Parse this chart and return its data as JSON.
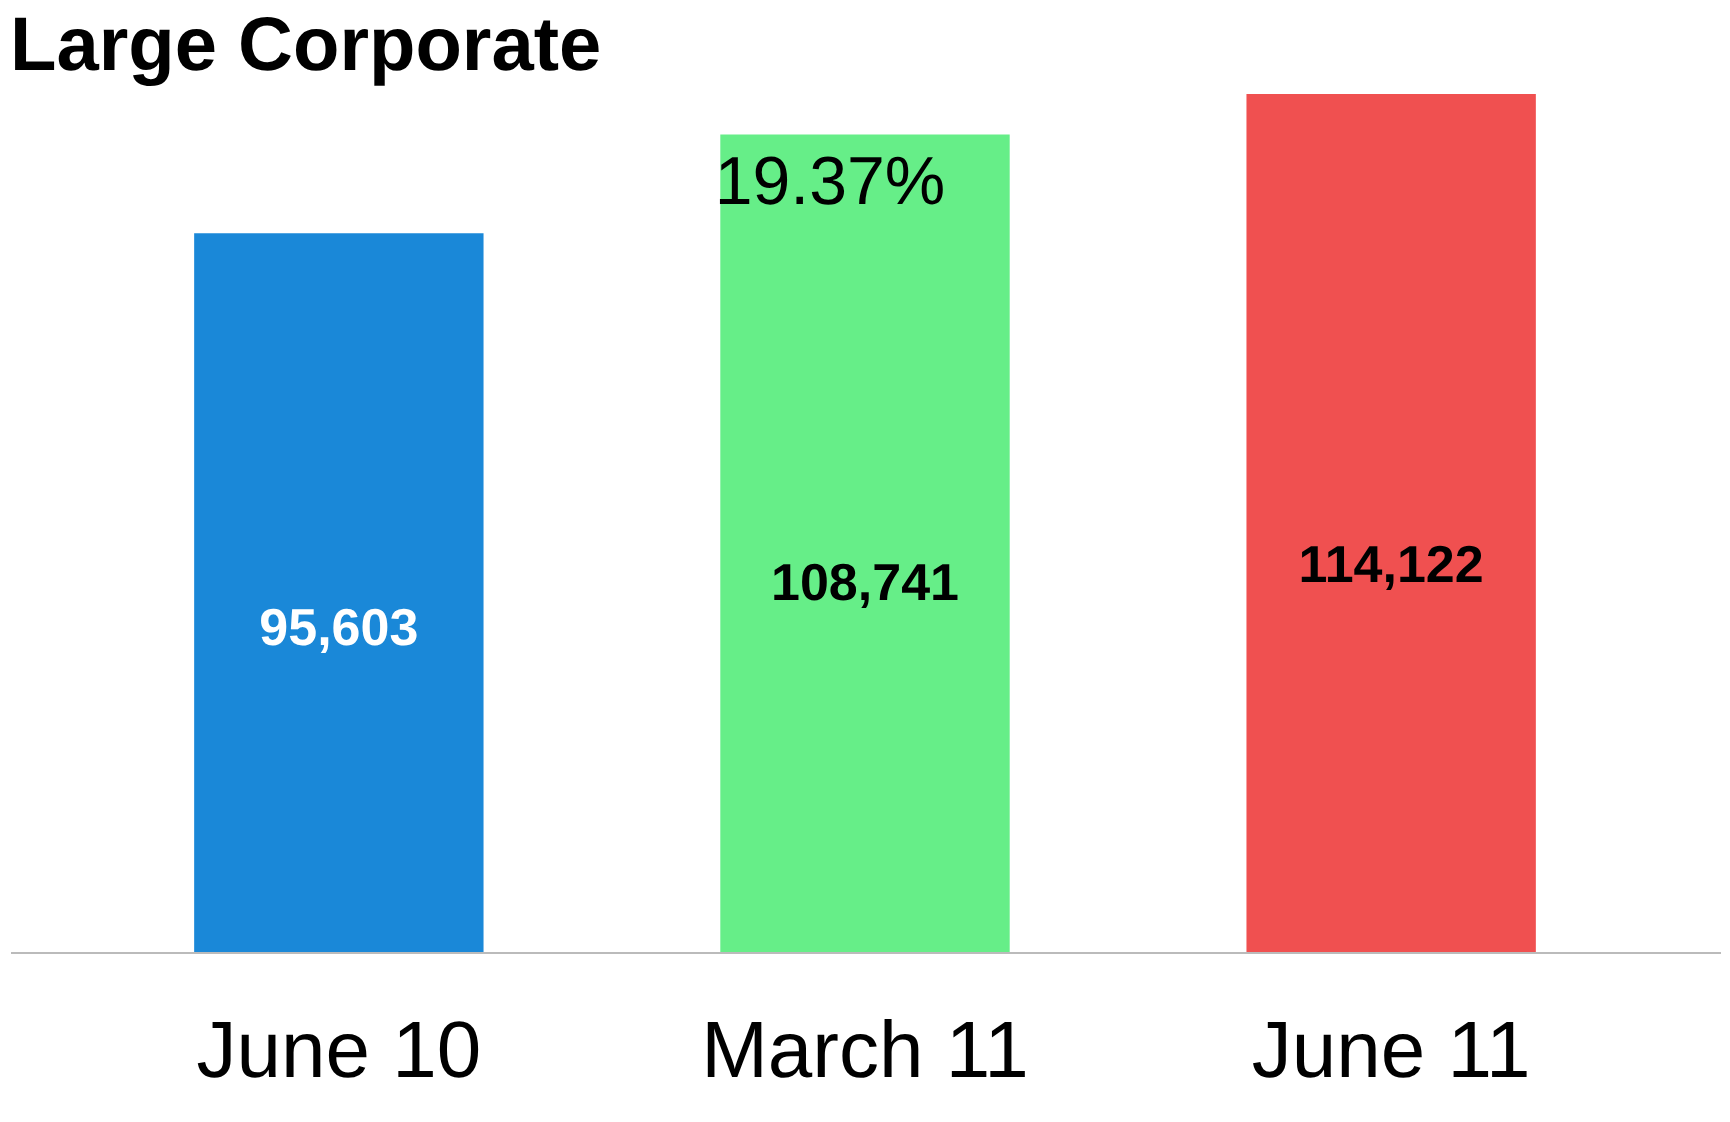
{
  "chart_data": {
    "type": "bar",
    "title": "Large Corporate",
    "categories": [
      "June 10",
      "March 11",
      "June 11"
    ],
    "values": [
      95603,
      108741,
      114122
    ],
    "colors": [
      "#1a88d8",
      "#66ee88",
      "#f05050"
    ],
    "value_labels": [
      "95,603",
      "108,741",
      "114,122"
    ],
    "annotations": [
      "19.37%"
    ]
  }
}
